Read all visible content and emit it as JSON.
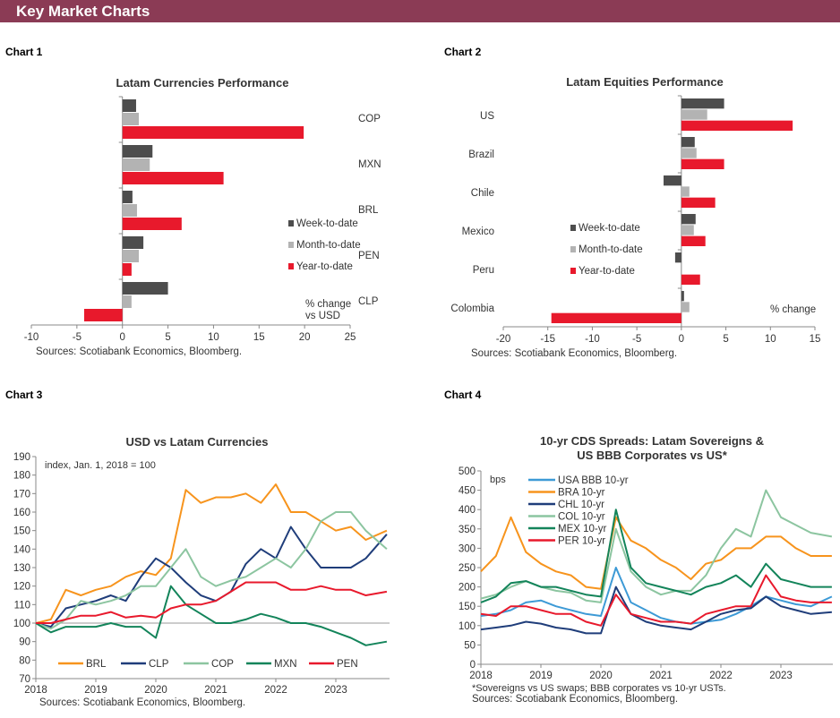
{
  "header": {
    "title": "Key Market Charts"
  },
  "colors": {
    "header": "#8b3b55",
    "week": "#4d4d4d",
    "month": "#b3b3b3",
    "year": "#e8192c"
  },
  "chart_data": [
    {
      "label": "Chart 1",
      "type": "bar",
      "orientation": "horizontal",
      "title": "Latam Currencies Performance",
      "categories": [
        "COP",
        "MXN",
        "BRL",
        "PEN",
        "CLP"
      ],
      "series": [
        {
          "name": "Week-to-date",
          "values": [
            1.5,
            3.3,
            1.1,
            2.3,
            5.0
          ]
        },
        {
          "name": "Month-to-date",
          "values": [
            1.8,
            3.0,
            1.6,
            1.8,
            1.0
          ]
        },
        {
          "name": "Year-to-date",
          "values": [
            19.9,
            11.1,
            6.5,
            1.0,
            -4.2
          ]
        }
      ],
      "xlim": [
        -10,
        25
      ],
      "xticks": [
        -10,
        -5,
        0,
        5,
        10,
        15,
        20,
        25
      ],
      "annotation": [
        "% change",
        "vs USD"
      ],
      "legend": "right",
      "source": "Sources: Scotiabank Economics, Bloomberg."
    },
    {
      "label": "Chart 2",
      "type": "bar",
      "orientation": "horizontal",
      "title": "Latam Equities Performance",
      "categories": [
        "US",
        "Brazil",
        "Chile",
        "Mexico",
        "Peru",
        "Colombia"
      ],
      "series": [
        {
          "name": "Week-to-date",
          "values": [
            4.8,
            1.5,
            -2.0,
            1.6,
            -0.7,
            0.3
          ]
        },
        {
          "name": "Month-to-date",
          "values": [
            2.9,
            1.7,
            0.9,
            1.4,
            0.0,
            0.9
          ]
        },
        {
          "name": "Year-to-date",
          "values": [
            12.5,
            4.8,
            3.8,
            2.7,
            2.1,
            -14.6
          ]
        }
      ],
      "xlim": [
        -20,
        15
      ],
      "xticks": [
        -20,
        -15,
        -10,
        -5,
        0,
        5,
        10,
        15
      ],
      "annotation": [
        "% change"
      ],
      "legend": "center-left",
      "source": "Sources: Scotiabank Economics, Bloomberg."
    },
    {
      "label": "Chart 3",
      "type": "line",
      "title": "USD vs Latam Currencies",
      "ylabel": "index, Jan. 1, 2018 = 100",
      "ylim": [
        70,
        190
      ],
      "yticks": [
        70,
        80,
        90,
        100,
        110,
        120,
        130,
        140,
        150,
        160,
        170,
        180,
        190
      ],
      "xticks": [
        "2018",
        "2019",
        "2020",
        "2021",
        "2022",
        "2023"
      ],
      "reference_line": 100,
      "x": [
        2018.0,
        2018.25,
        2018.5,
        2018.75,
        2019.0,
        2019.25,
        2019.5,
        2019.75,
        2020.0,
        2020.25,
        2020.5,
        2020.75,
        2021.0,
        2021.25,
        2021.5,
        2021.75,
        2022.0,
        2022.25,
        2022.5,
        2022.75,
        2023.0,
        2023.25,
        2023.5,
        2023.85
      ],
      "series": [
        {
          "name": "BRL",
          "color": "#f7941d",
          "values": [
            100,
            102,
            118,
            115,
            118,
            120,
            125,
            128,
            126,
            135,
            172,
            165,
            168,
            168,
            170,
            165,
            175,
            160,
            160,
            155,
            150,
            152,
            145,
            150
          ]
        },
        {
          "name": "CLP",
          "color": "#1f3d7a",
          "values": [
            100,
            98,
            108,
            110,
            112,
            115,
            112,
            125,
            135,
            130,
            122,
            115,
            112,
            117,
            132,
            140,
            135,
            152,
            140,
            130,
            130,
            130,
            135,
            148
          ]
        },
        {
          "name": "COP",
          "color": "#8cc5a0",
          "values": [
            100,
            97,
            102,
            112,
            110,
            112,
            115,
            120,
            120,
            130,
            140,
            125,
            120,
            123,
            125,
            130,
            135,
            130,
            140,
            155,
            160,
            160,
            150,
            140
          ]
        },
        {
          "name": "MXN",
          "color": "#13845a",
          "values": [
            100,
            95,
            98,
            98,
            98,
            100,
            98,
            98,
            92,
            120,
            110,
            105,
            100,
            100,
            102,
            105,
            103,
            100,
            100,
            98,
            95,
            92,
            88,
            90
          ]
        },
        {
          "name": "PEN",
          "color": "#e8192c",
          "values": [
            100,
            100,
            102,
            104,
            104,
            106,
            103,
            104,
            103,
            108,
            110,
            110,
            112,
            117,
            122,
            122,
            122,
            118,
            118,
            120,
            118,
            118,
            115,
            117
          ]
        }
      ],
      "legend": "bottom",
      "source": "Sources: Scotiabank Economics, Bloomberg."
    },
    {
      "label": "Chart 4",
      "type": "line",
      "title": "10-yr CDS Spreads: Latam Sovereigns &",
      "title2": "US BBB Corporates vs US*",
      "ylabel": "bps",
      "ylim": [
        0,
        500
      ],
      "yticks": [
        0,
        50,
        100,
        150,
        200,
        250,
        300,
        350,
        400,
        450,
        500
      ],
      "xticks": [
        "2018",
        "2019",
        "2020",
        "2021",
        "2022",
        "2023"
      ],
      "x": [
        2018.0,
        2018.25,
        2018.5,
        2018.75,
        2019.0,
        2019.25,
        2019.5,
        2019.75,
        2020.0,
        2020.25,
        2020.5,
        2020.75,
        2021.0,
        2021.25,
        2021.5,
        2021.75,
        2022.0,
        2022.25,
        2022.5,
        2022.75,
        2023.0,
        2023.25,
        2023.5,
        2023.85
      ],
      "series": [
        {
          "name": "USA BBB 10-yr",
          "color": "#3d9ad6",
          "values": [
            125,
            130,
            140,
            160,
            165,
            150,
            140,
            130,
            125,
            250,
            160,
            140,
            120,
            110,
            105,
            110,
            115,
            130,
            150,
            175,
            165,
            155,
            150,
            175
          ]
        },
        {
          "name": "BRA 10-yr",
          "color": "#f7941d",
          "values": [
            240,
            280,
            380,
            290,
            260,
            240,
            230,
            200,
            195,
            380,
            320,
            300,
            270,
            250,
            220,
            260,
            270,
            300,
            300,
            330,
            330,
            300,
            280,
            280
          ]
        },
        {
          "name": "CHL 10-yr",
          "color": "#1f3d7a",
          "values": [
            90,
            95,
            100,
            110,
            105,
            95,
            90,
            80,
            80,
            200,
            130,
            110,
            100,
            95,
            90,
            110,
            130,
            140,
            145,
            175,
            150,
            140,
            130,
            135
          ]
        },
        {
          "name": "COL 10-yr",
          "color": "#8cc5a0",
          "values": [
            170,
            180,
            200,
            215,
            200,
            190,
            185,
            165,
            160,
            350,
            240,
            200,
            180,
            190,
            190,
            230,
            300,
            350,
            330,
            450,
            380,
            360,
            340,
            330
          ]
        },
        {
          "name": "MEX 10-yr",
          "color": "#13845a",
          "values": [
            160,
            175,
            210,
            215,
            200,
            200,
            190,
            180,
            175,
            400,
            250,
            210,
            200,
            190,
            180,
            200,
            210,
            230,
            200,
            260,
            220,
            210,
            200,
            200
          ]
        },
        {
          "name": "PER 10-yr",
          "color": "#e8192c",
          "values": [
            130,
            125,
            150,
            150,
            140,
            130,
            130,
            110,
            100,
            180,
            130,
            120,
            110,
            110,
            105,
            130,
            140,
            150,
            150,
            230,
            175,
            165,
            160,
            160
          ]
        }
      ],
      "legend": "top-left",
      "footnote": "*Sovereigns vs US swaps; BBB corporates vs 10-yr USTs.",
      "source": "Sources: Scotiabank Economics, Bloomberg."
    }
  ]
}
